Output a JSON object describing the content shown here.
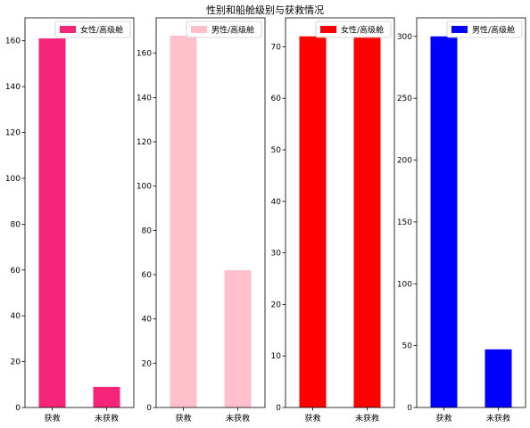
{
  "figure": {
    "suptitle": "性别和船舱级别与获救情况"
  },
  "chart_data": [
    {
      "type": "bar",
      "categories": [
        "获救",
        "未获救"
      ],
      "series": [
        {
          "name": "女性/高级舱",
          "values": [
            161,
            9
          ],
          "color": "#f7257a"
        }
      ],
      "ylim": [
        0,
        170
      ],
      "yticks": [
        0,
        20,
        40,
        60,
        80,
        100,
        120,
        140,
        160
      ],
      "legend": "top-right",
      "grid": false
    },
    {
      "type": "bar",
      "categories": [
        "获救",
        "未获救"
      ],
      "series": [
        {
          "name": "男性/高级舱",
          "values": [
            168,
            62
          ],
          "color": "#ffc0cb"
        }
      ],
      "ylim": [
        0,
        176
      ],
      "yticks": [
        0,
        20,
        40,
        60,
        80,
        100,
        120,
        140,
        160
      ],
      "legend": "top-right",
      "grid": false
    },
    {
      "type": "bar",
      "categories": [
        "获救",
        "未获救"
      ],
      "series": [
        {
          "name": "女性/高级舱",
          "values": [
            72,
            72
          ],
          "color": "#ff0000"
        }
      ],
      "ylim": [
        0,
        75.6
      ],
      "yticks": [
        0,
        10,
        20,
        30,
        40,
        50,
        60,
        70
      ],
      "legend": "top-right",
      "grid": false
    },
    {
      "type": "bar",
      "categories": [
        "获救",
        "未获救"
      ],
      "series": [
        {
          "name": "男性/高级舱",
          "values": [
            300,
            47
          ],
          "color": "#0000ff"
        }
      ],
      "ylim": [
        0,
        315
      ],
      "yticks": [
        0,
        50,
        100,
        150,
        200,
        250,
        300
      ],
      "legend": "top-right",
      "grid": false
    }
  ]
}
